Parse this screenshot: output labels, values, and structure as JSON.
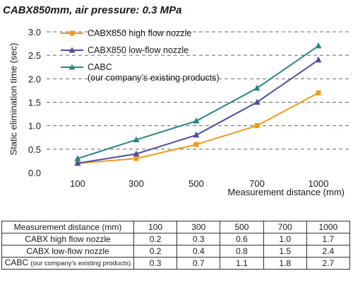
{
  "title": "CABX850mm, air pressure: 0.3 MPa",
  "chart_data": {
    "type": "line",
    "title": "CABX850mm, air pressure: 0.3 MPa",
    "xlabel": "Measurement distance (mm)",
    "ylabel": "Static elimination time (sec)",
    "categories": [
      "100",
      "300",
      "500",
      "700",
      "1000"
    ],
    "ylim": [
      0,
      3.0
    ],
    "yticks": [
      "0.0",
      "0.5",
      "1.0",
      "1.5",
      "2.0",
      "2.5",
      "3.0"
    ],
    "grid": "dashed horizontal",
    "legend_position": "top-left",
    "series": [
      {
        "name": "CABX850 high flow nozzle",
        "values": [
          0.2,
          0.3,
          0.6,
          1.0,
          1.7
        ],
        "color": "#f39a1e",
        "marker": "square"
      },
      {
        "name": "CABX850 low-flow nozzle",
        "values": [
          0.2,
          0.4,
          0.8,
          1.5,
          2.4
        ],
        "color": "#4b4f9e",
        "marker": "triangle"
      },
      {
        "name": "CABC",
        "name_line2": "(our company’s existing products)",
        "values": [
          0.3,
          0.7,
          1.1,
          1.8,
          2.7
        ],
        "color": "#2a8585",
        "marker": "triangle"
      }
    ]
  },
  "table": {
    "header": [
      "Measurement distance (mm)",
      "100",
      "300",
      "500",
      "700",
      "1000"
    ],
    "rows": [
      {
        "label": "CABX high flow nozzle",
        "values": [
          "0.2",
          "0.3",
          "0.6",
          "1.0",
          "1.7"
        ]
      },
      {
        "label": "CABX low-flow nozzle",
        "values": [
          "0.2",
          "0.4",
          "0.8",
          "1.5",
          "2.4"
        ]
      },
      {
        "label": "CABC",
        "label_small": "(our company’s existing products)",
        "values": [
          "0.3",
          "0.7",
          "1.1",
          "1.8",
          "2.7"
        ]
      }
    ]
  }
}
